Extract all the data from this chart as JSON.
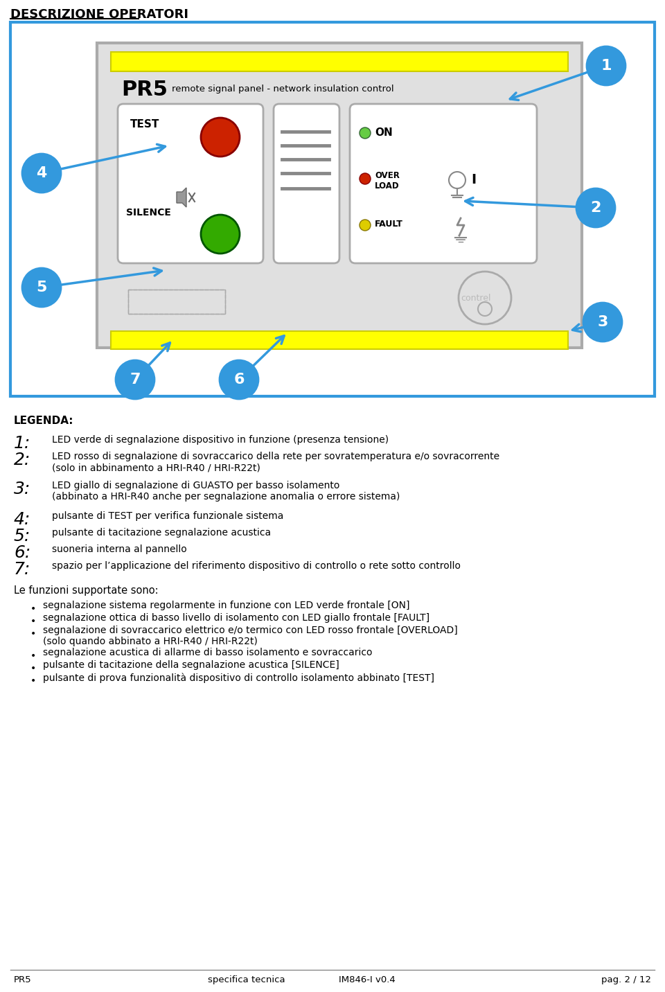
{
  "page_title": "DESCRIZIONE OPERATORI",
  "bg_color": "#ffffff",
  "border_color": "#3399dd",
  "yellow_bar_color": "#ffff00",
  "blue_arrow_color": "#3399dd",
  "circle_bg": "#3399dd",
  "circle_text_color": "#ffffff",
  "panel_title_big": "PR5",
  "panel_title_small": "remote signal panel - network insulation control",
  "btn_color_red": "#cc2200",
  "btn_color_green": "#33aa00",
  "led_on_color": "#66cc44",
  "led_overload_color": "#cc2200",
  "led_fault_color": "#ddcc00",
  "legend_title": "LEGENDA:",
  "legend_items": [
    [
      "1:",
      "LED verde di segnalazione dispositivo in funzione (presenza tensione)"
    ],
    [
      "2:",
      "LED rosso di segnalazione di sovraccarico della rete per sovratemperatura e/o sovracorrente\n(solo in abbinamento a HRI-R40 / HRI-R22t)"
    ],
    [
      "3:",
      "LED giallo di segnalazione di GUASTO per basso isolamento\n(abbinato a HRI-R40 anche per segnalazione anomalia o errore sistema)"
    ],
    [
      "4:",
      "pulsante di TEST per verifica funzionale sistema"
    ],
    [
      "5:",
      "pulsante di tacitazione segnalazione acustica"
    ],
    [
      "6:",
      "suoneria interna al pannello"
    ],
    [
      "7:",
      "spazio per l’applicazione del riferimento dispositivo di controllo o rete sotto controllo"
    ]
  ],
  "funzioni_title": "Le funzioni supportate sono:",
  "funzioni_items": [
    "segnalazione sistema regolarmente in funzione con LED verde frontale [ON]",
    "segnalazione ottica di basso livello di isolamento con LED giallo frontale [FAULT]",
    "segnalazione di sovraccarico elettrico e/o termico con LED rosso frontale [OVERLOAD]\n(solo quando abbinato a HRI-R40 / HRI-R22t)",
    "segnalazione acustica di allarme di basso isolamento e sovraccarico",
    "pulsante di tacitazione della segnalazione acustica [SILENCE]",
    "pulsante di prova funzionalità dispositivo di controllo isolamento abbinato [TEST]"
  ],
  "footer_left": "PR5",
  "footer_center_left": "specifica tecnica",
  "footer_center": "IM846-I v0.4",
  "footer_right": "pag. 2 / 12"
}
